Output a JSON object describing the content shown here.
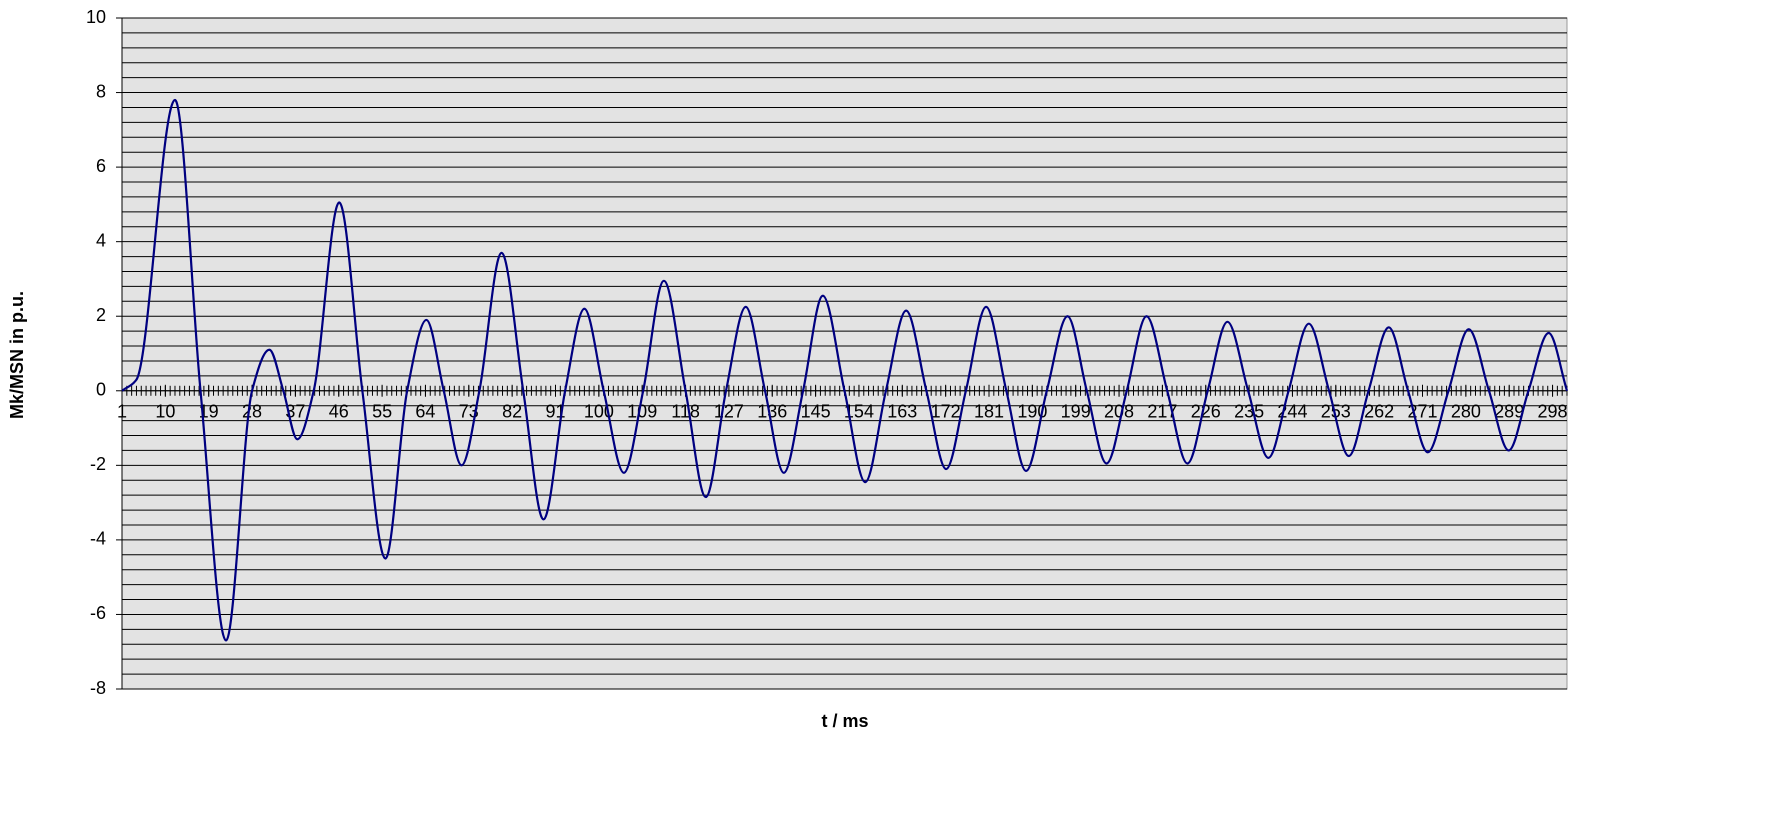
{
  "chart_data": {
    "type": "line",
    "xlabel": "t / ms",
    "ylabel": "Mk/MSN in p.u.",
    "xlim": [
      1,
      301
    ],
    "ylim": [
      -8,
      10
    ],
    "xticks": [
      1,
      10,
      19,
      28,
      37,
      46,
      55,
      64,
      73,
      82,
      91,
      100,
      109,
      118,
      127,
      136,
      145,
      154,
      163,
      172,
      181,
      190,
      199,
      208,
      217,
      226,
      235,
      244,
      253,
      262,
      271,
      280,
      289,
      298
    ],
    "yticks": [
      -8,
      -6,
      -4,
      -2,
      0,
      2,
      4,
      6,
      8,
      10
    ],
    "grid": true,
    "minor_grid_divisions": 5,
    "x_minor_ticks": true,
    "series": [
      {
        "color": "#000080",
        "x": [
          1,
          4,
          12,
          17.3,
          22.6,
          28,
          31.6,
          34.5,
          37.4,
          40.8,
          46.1,
          50.9,
          55.7,
          60.2,
          64.2,
          67.8,
          71.5,
          75.2,
          79.8,
          84.3,
          88.5,
          93,
          97,
          101,
          105.2,
          109.2,
          113.5,
          118,
          122.2,
          126.4,
          130.5,
          134.5,
          138.4,
          142.4,
          146.5,
          151,
          155.3,
          159.6,
          163.8,
          168,
          172.1,
          176.2,
          180.4,
          184.6,
          188.7,
          193,
          197.3,
          201.3,
          205.4,
          209.6,
          213.7,
          218,
          222.2,
          226.4,
          230.5,
          234.8,
          239,
          243.2,
          247.4,
          251.6,
          255.7,
          259.8,
          264,
          268,
          272.1,
          276.4,
          280.6,
          284.8,
          288.9,
          293,
          297.2,
          301
        ],
        "values": [
          0,
          0.3,
          7.8,
          0,
          -6.7,
          0,
          1.1,
          0,
          -1.3,
          0,
          5.05,
          0,
          -4.5,
          0,
          1.9,
          0,
          -2,
          0,
          3.7,
          0,
          -3.45,
          0,
          2.2,
          0,
          -2.2,
          0,
          2.95,
          0,
          -2.85,
          0,
          2.25,
          0,
          -2.2,
          0,
          2.55,
          0,
          -2.45,
          0,
          2.15,
          0,
          -2.1,
          0,
          2.25,
          0,
          -2.15,
          0,
          2,
          0,
          -1.95,
          0,
          2,
          0,
          -1.95,
          0,
          1.85,
          0,
          -1.8,
          0,
          1.8,
          0,
          -1.75,
          0,
          1.7,
          0,
          -1.65,
          0,
          1.65,
          0,
          -1.6,
          0,
          1.55,
          0
        ]
      }
    ]
  }
}
